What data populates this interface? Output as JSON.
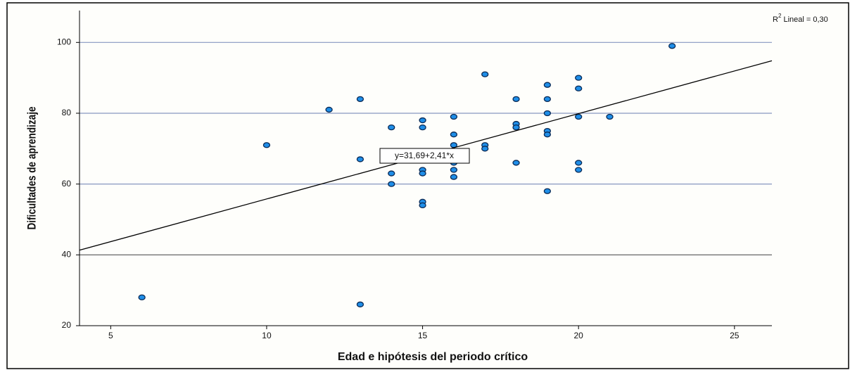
{
  "chart_data": {
    "type": "scatter",
    "x_label": "Edad e hipótesis del periodo crítico",
    "y_label": "Dificultades de aprendizaje",
    "x": [
      6,
      10,
      12,
      13,
      13,
      13,
      14,
      14,
      14,
      15,
      15,
      15,
      15,
      15,
      15,
      16,
      16,
      16,
      16,
      16,
      16,
      17,
      17,
      17,
      18,
      18,
      18,
      18,
      19,
      19,
      19,
      19,
      19,
      19,
      20,
      20,
      20,
      20,
      20,
      21,
      23
    ],
    "values": [
      28,
      71,
      81,
      84,
      67,
      26,
      76,
      63,
      60,
      78,
      76,
      64,
      63,
      55,
      54,
      79,
      74,
      71,
      66,
      64,
      62,
      91,
      71,
      70,
      84,
      77,
      76,
      66,
      88,
      84,
      80,
      75,
      74,
      58,
      90,
      87,
      79,
      66,
      64,
      79,
      99
    ],
    "color": "#1f8ee8",
    "xlim": [
      4,
      26.2
    ],
    "ylim": [
      20,
      109
    ],
    "xticks": [
      5,
      10,
      15,
      20,
      25
    ],
    "yticks": [
      20,
      40,
      60,
      80,
      100
    ],
    "grid": true,
    "fit": {
      "intercept": 31.69,
      "slope": 2.41,
      "label": "y=31,69+2,41*x"
    },
    "r2_label": {
      "base": "R",
      "sup": "2",
      "rest": " Lineal = 0,30"
    }
  }
}
